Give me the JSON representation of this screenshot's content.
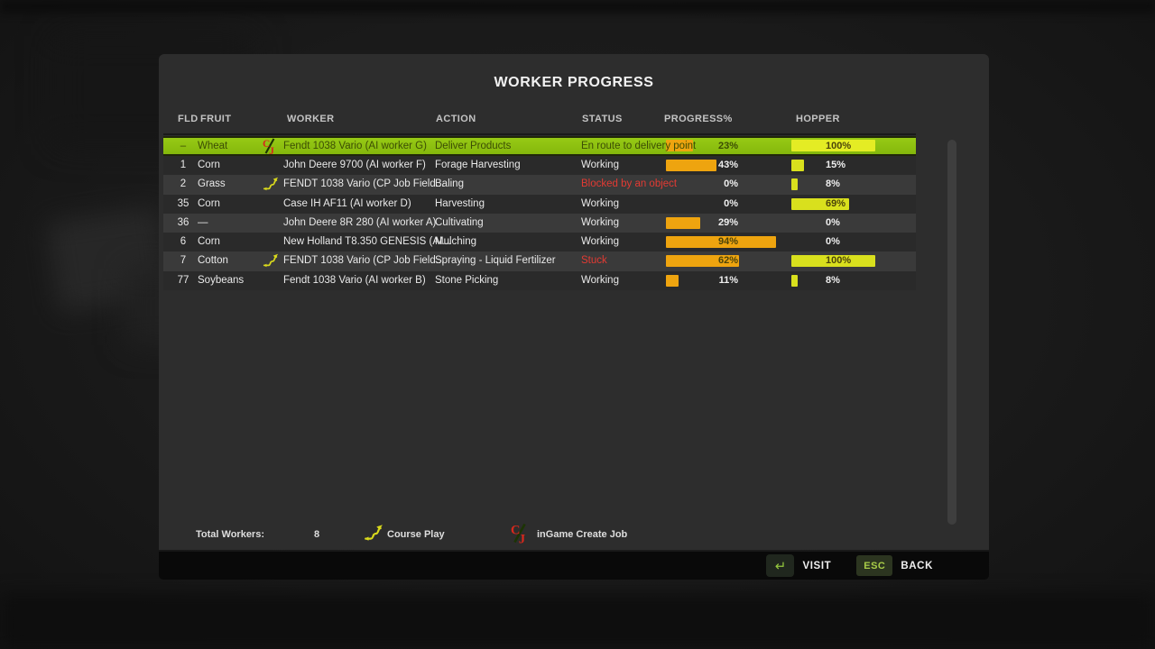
{
  "title": "WORKER PROGRESS",
  "table": {
    "columns": [
      "FLD",
      "FRUIT",
      "WORKER",
      "ACTION",
      "STATUS",
      "PROGRESS%",
      "HOPPER"
    ],
    "rows": [
      {
        "fld": "–",
        "fruit": "Wheat",
        "icon": "cj",
        "worker": "Fendt 1038 Vario (AI worker G)",
        "action": "Deliver Products",
        "status": "En route to delivery point",
        "status_red": false,
        "progress": 23,
        "hopper": 100,
        "highlight": true
      },
      {
        "fld": "1",
        "fruit": "Corn",
        "icon": "",
        "worker": "John Deere 9700 (AI worker F)",
        "action": "Forage Harvesting",
        "status": "Working",
        "status_red": false,
        "progress": 43,
        "hopper": 15,
        "highlight": false
      },
      {
        "fld": "2",
        "fruit": "Grass",
        "icon": "cp",
        "worker": "FENDT 1038 Vario  (CP Job Field...",
        "action": "Baling",
        "status": "Blocked by an object",
        "status_red": true,
        "progress": 0,
        "hopper": 8,
        "highlight": false
      },
      {
        "fld": "35",
        "fruit": "Corn",
        "icon": "",
        "worker": "Case IH AF11 (AI worker D)",
        "action": "Harvesting",
        "status": "Working",
        "status_red": false,
        "progress": 0,
        "hopper": 69,
        "highlight": false
      },
      {
        "fld": "36",
        "fruit": "—",
        "icon": "",
        "worker": "John Deere 8R 280 (AI worker A)",
        "action": "Cultivating",
        "status": "Working",
        "status_red": false,
        "progress": 29,
        "hopper": 0,
        "highlight": false
      },
      {
        "fld": "6",
        "fruit": "Corn",
        "icon": "",
        "worker": "New Holland T8.350 GENESIS (AI...",
        "action": "Mulching",
        "status": "Working",
        "status_red": false,
        "progress": 94,
        "hopper": 0,
        "highlight": false
      },
      {
        "fld": "7",
        "fruit": "Cotton",
        "icon": "cp",
        "worker": "FENDT 1038 Vario  (CP Job Field...",
        "action": "Spraying - Liquid Fertilizer",
        "status": "Stuck",
        "status_red": true,
        "progress": 62,
        "hopper": 100,
        "highlight": false
      },
      {
        "fld": "77",
        "fruit": "Soybeans",
        "icon": "",
        "worker": "Fendt 1038 Vario (AI worker B)",
        "action": "Stone Picking",
        "status": "Working",
        "status_red": false,
        "progress": 11,
        "hopper": 8,
        "highlight": false
      }
    ]
  },
  "footer": {
    "total_label": "Total Workers:",
    "total_value": "8",
    "courseplay_label": "Course Play",
    "cj_label": "inGame Create Job"
  },
  "bottom_bar": {
    "visit_label": "VISIT",
    "esc_label": "ESC",
    "back_label": "BACK",
    "enter_icon": "↵"
  },
  "icons": {
    "cj": {
      "letters": [
        "C",
        "J"
      ],
      "color": "#d8281c",
      "slash_color": "#1c3404"
    },
    "courseplay": {
      "color": "#d9d91c"
    }
  },
  "colors": {
    "highlight_green": "#8dc011",
    "bar_orange": "#eea40f",
    "bar_yellow": "#d9e01d",
    "status_red": "#e23a33",
    "key_green": "#a9cd48"
  }
}
